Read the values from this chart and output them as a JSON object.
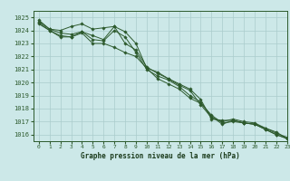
{
  "background_color": "#cce8e8",
  "grid_color": "#aacccc",
  "line_color": "#2d5a2d",
  "marker_color": "#2d5a2d",
  "xlabel": "Graphe pression niveau de la mer (hPa)",
  "xlabel_color": "#1a3a1a",
  "xlim": [
    -0.5,
    23
  ],
  "ylim": [
    1015.5,
    1025.5
  ],
  "yticks": [
    1016,
    1017,
    1018,
    1019,
    1020,
    1021,
    1022,
    1023,
    1024,
    1025
  ],
  "xticks": [
    0,
    1,
    2,
    3,
    4,
    5,
    6,
    7,
    8,
    9,
    10,
    11,
    12,
    13,
    14,
    15,
    16,
    17,
    18,
    19,
    20,
    21,
    22,
    23
  ],
  "series": [
    [
      1024.8,
      1024.1,
      1024.0,
      1024.3,
      1024.5,
      1024.1,
      1024.2,
      1024.3,
      1023.0,
      1022.5,
      1021.2,
      1020.7,
      1020.3,
      1019.9,
      1019.5,
      1018.7,
      1017.2,
      1017.1,
      1017.1,
      1016.9,
      1016.8,
      1016.5,
      1016.2,
      1015.7
    ],
    [
      1024.7,
      1024.1,
      1023.8,
      1023.7,
      1023.9,
      1023.6,
      1023.3,
      1024.3,
      1023.9,
      1023.0,
      1021.1,
      1020.8,
      1020.3,
      1019.8,
      1019.4,
      1018.3,
      1017.3,
      1017.0,
      1017.2,
      1017.0,
      1016.9,
      1016.5,
      1016.1,
      1015.8
    ],
    [
      1024.6,
      1024.0,
      1023.6,
      1023.5,
      1023.9,
      1023.3,
      1023.2,
      1024.0,
      1023.5,
      1022.3,
      1021.0,
      1020.5,
      1020.2,
      1019.7,
      1019.0,
      1018.5,
      1017.4,
      1016.8,
      1017.1,
      1016.9,
      1016.8,
      1016.4,
      1016.0,
      1015.7
    ],
    [
      1024.5,
      1024.0,
      1023.5,
      1023.5,
      1023.8,
      1023.0,
      1023.0,
      1022.7,
      1022.3,
      1022.0,
      1021.1,
      1020.3,
      1019.9,
      1019.5,
      1018.8,
      1018.4,
      1017.5,
      1016.9,
      1017.0,
      1016.9,
      1016.8,
      1016.4,
      1016.0,
      1015.7
    ]
  ]
}
